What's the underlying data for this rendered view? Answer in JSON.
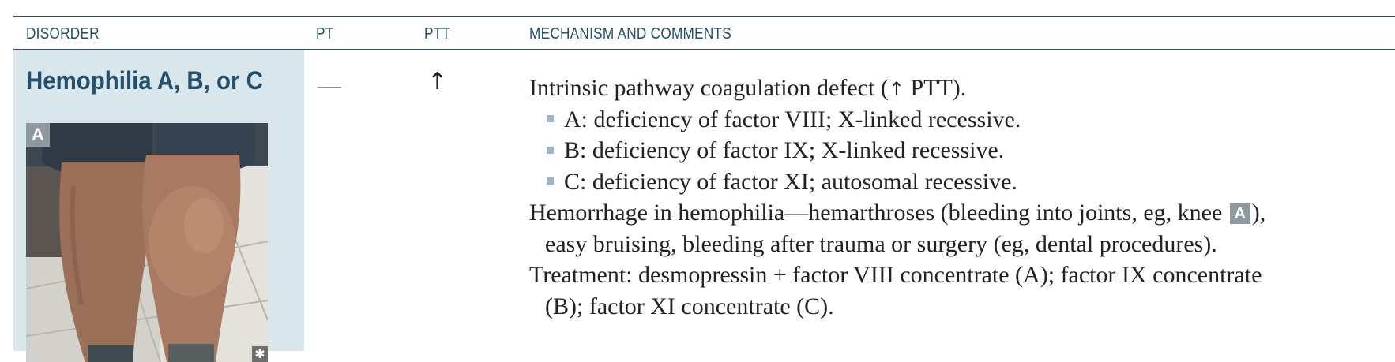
{
  "header": {
    "col_disorder": "DISORDER",
    "col_pt": "PT",
    "col_ptt": "PTT",
    "col_mechanism": "MECHANISM AND COMMENTS"
  },
  "row": {
    "disorder": "Hemophilia A, B, or C",
    "image_label": "A",
    "image_mark": "✱",
    "pt": "—",
    "ptt": "↑",
    "mechanism": {
      "line1_a": "Intrinsic pathway coagulation defect (",
      "line1_arrow": "↑",
      "line1_b": " PTT).",
      "bullets": [
        "A: deficiency of factor VIII; X-linked recessive.",
        "B: deficiency of factor IX; X-linked recessive.",
        "C: deficiency of factor XI; autosomal recessive."
      ],
      "hemorrhage_a": "Hemorrhage in hemophilia—hemarthroses (bleeding into joints, eg, knee ",
      "hemorrhage_badge": "A",
      "hemorrhage_b": "),",
      "hemorrhage_cont": "easy bruising, bleeding after trauma or surgery (eg, dental procedures).",
      "treatment": "Treatment: desmopressin + factor VIII concentrate (A); factor IX concentrate",
      "treatment_cont": "(B); factor XI concentrate (C)."
    }
  },
  "colors": {
    "header_text": "#24506d",
    "disorder_bg": "#d9e7ec",
    "rule": "#3a4a55",
    "bullet": "#9fb4c2"
  }
}
